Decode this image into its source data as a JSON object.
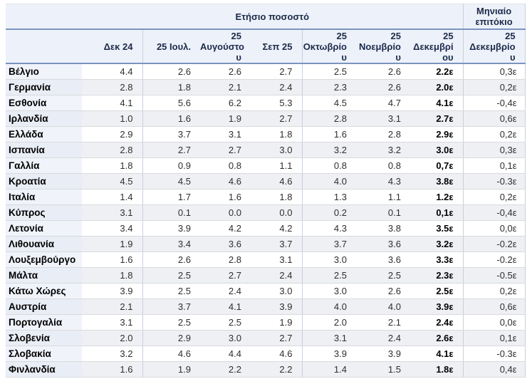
{
  "accent_colors": {
    "header_background": "#edf1f9",
    "header_text": "#1c2b4a",
    "rule_blue": "#7a94c0",
    "stripe_gray": "#eef0f4"
  },
  "chart_data": {
    "type": "table",
    "group_annual": "Ετήσιο ποσοστό",
    "group_monthly": "Μηνιαίο\nεπιτόκιο",
    "columns": [
      "Δεκ 24",
      "25 Ιουλ.",
      "25\nΑυγούστο\nυ",
      "Σεπ 25",
      "25\nΟκτωβρίο\nυ",
      "25\nΝοεμβρίο\nυ",
      "25\nΔεκεμβρί\nου",
      "25\nΔεκεμβρίο\nυ"
    ],
    "rows": [
      {
        "country": "Βέλγιο",
        "values": [
          "4.4",
          "2.6",
          "2.6",
          "2.7",
          "2.5",
          "2.6"
        ],
        "december": "2.2ε",
        "monthly": "0,3ε"
      },
      {
        "country": "Γερμανία",
        "values": [
          "2.8",
          "1.8",
          "2.1",
          "2.4",
          "2.3",
          "2.6"
        ],
        "december": "2.0ε",
        "monthly": "0,2ε"
      },
      {
        "country": "Εσθονία",
        "values": [
          "4.1",
          "5.6",
          "6.2",
          "5.3",
          "4.5",
          "4.7"
        ],
        "december": "4.1ε",
        "monthly": "-0,4ε"
      },
      {
        "country": "Ιρλανδία",
        "values": [
          "1.0",
          "1.6",
          "1.9",
          "2.7",
          "2.8",
          "3.1"
        ],
        "december": "2.7ε",
        "monthly": "0,6ε"
      },
      {
        "country": "Ελλάδα",
        "values": [
          "2.9",
          "3.7",
          "3.1",
          "1.8",
          "1.6",
          "2.8"
        ],
        "december": "2.9ε",
        "monthly": "0,2ε"
      },
      {
        "country": "Ισπανία",
        "values": [
          "2.8",
          "2.7",
          "2.7",
          "3.0",
          "3.2",
          "3.2"
        ],
        "december": "3.0ε",
        "monthly": "0,3ε"
      },
      {
        "country": "Γαλλία",
        "values": [
          "1.8",
          "0.9",
          "0.8",
          "1.1",
          "0.8",
          "0.8"
        ],
        "december": "0,7ε",
        "monthly": "0,1ε"
      },
      {
        "country": "Κροατία",
        "values": [
          "4.5",
          "4.5",
          "4.6",
          "4.6",
          "4.0",
          "4.3"
        ],
        "december": "3.8ε",
        "monthly": "-0.3ε"
      },
      {
        "country": "Ιταλία",
        "values": [
          "1.4",
          "1.7",
          "1.6",
          "1.8",
          "1.3",
          "1.1"
        ],
        "december": "1.2ε",
        "monthly": "0,2ε"
      },
      {
        "country": "Κύπρος",
        "values": [
          "3.1",
          "0.1",
          "0.0",
          "0.0",
          "0.2",
          "0.1"
        ],
        "december": "0,1ε",
        "monthly": "-0,4ε"
      },
      {
        "country": "Λετονία",
        "values": [
          "3.4",
          "3.9",
          "4.2",
          "4.2",
          "4.3",
          "3.8"
        ],
        "december": "3.5ε",
        "monthly": "0,0ε"
      },
      {
        "country": "Λιθουανία",
        "values": [
          "1.9",
          "3.4",
          "3.6",
          "3.7",
          "3.7",
          "3.6"
        ],
        "december": "3.2ε",
        "monthly": "-0.2ε"
      },
      {
        "country": "Λουξεμβούργο",
        "values": [
          "1.6",
          "2.6",
          "2.8",
          "3.1",
          "3.0",
          "3.6"
        ],
        "december": "3.3ε",
        "monthly": "-0.2ε"
      },
      {
        "country": "Μάλτα",
        "values": [
          "1.8",
          "2.5",
          "2.7",
          "2.4",
          "2.5",
          "2.5"
        ],
        "december": "2.3ε",
        "monthly": "-0.5ε"
      },
      {
        "country": "Κάτω Χώρες",
        "values": [
          "3.9",
          "2.5",
          "2.4",
          "3.0",
          "3.0",
          "2.6"
        ],
        "december": "2.5ε",
        "monthly": "0,2ε"
      },
      {
        "country": "Αυστρία",
        "values": [
          "2.1",
          "3.7",
          "4.1",
          "3.9",
          "4.0",
          "4.0"
        ],
        "december": "3.9ε",
        "monthly": "0,6ε"
      },
      {
        "country": "Πορτογαλία",
        "values": [
          "3.1",
          "2.5",
          "2.5",
          "1.9",
          "2.0",
          "2.1"
        ],
        "december": "2.4ε",
        "monthly": "0,0ε"
      },
      {
        "country": "Σλοβενία",
        "values": [
          "2.0",
          "2.9",
          "3.0",
          "2.7",
          "3.1",
          "2.4"
        ],
        "december": "2.6ε",
        "monthly": "0,1ε"
      },
      {
        "country": "Σλοβακία",
        "values": [
          "3.2",
          "4.6",
          "4.4",
          "4.6",
          "3.9",
          "3.9"
        ],
        "december": "4.1ε",
        "monthly": "-0.3ε"
      },
      {
        "country": "Φινλανδία",
        "values": [
          "1.6",
          "1.9",
          "2.2",
          "2.2",
          "1.4",
          "1.5"
        ],
        "december": "1.8ε",
        "monthly": "0,4ε"
      }
    ]
  }
}
